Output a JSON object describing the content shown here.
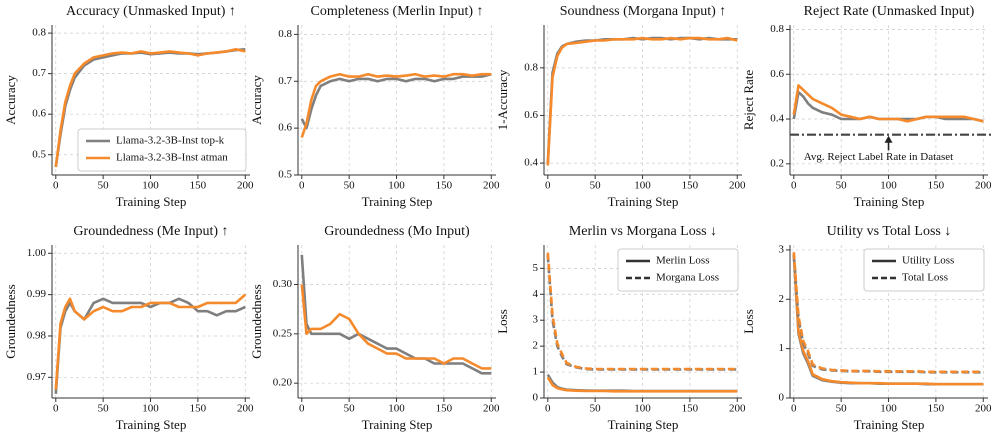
{
  "chart_data": [
    {
      "type": "line",
      "title": "Accuracy (Unmasked Input) ↑",
      "xlabel": "Training Step",
      "ylabel": "Accuracy",
      "x": [
        0,
        5,
        10,
        15,
        20,
        30,
        40,
        50,
        60,
        70,
        80,
        90,
        100,
        110,
        120,
        130,
        140,
        150,
        160,
        170,
        180,
        190,
        200
      ],
      "xlim": [
        -4,
        205
      ],
      "xticks": [
        0,
        50,
        100,
        150,
        200
      ],
      "ylim": [
        0.45,
        0.82
      ],
      "yticks": [
        0.5,
        0.6,
        0.7,
        0.8
      ],
      "grid": true,
      "series": [
        {
          "color": "#7f7f7f",
          "dash": false,
          "values": [
            0.47,
            0.55,
            0.62,
            0.66,
            0.69,
            0.72,
            0.735,
            0.74,
            0.745,
            0.75,
            0.75,
            0.752,
            0.748,
            0.75,
            0.752,
            0.75,
            0.75,
            0.748,
            0.75,
            0.752,
            0.755,
            0.758,
            0.76
          ]
        },
        {
          "color": "#f58a2c",
          "dash": false,
          "values": [
            0.47,
            0.56,
            0.63,
            0.67,
            0.7,
            0.725,
            0.74,
            0.745,
            0.75,
            0.752,
            0.75,
            0.755,
            0.75,
            0.752,
            0.755,
            0.752,
            0.75,
            0.745,
            0.75,
            0.752,
            0.755,
            0.76,
            0.755
          ]
        }
      ],
      "legend": {
        "loc": "lower right",
        "entries": [
          {
            "label": "Llama-3.2-3B-Inst top-k",
            "color": "#7f7f7f",
            "dash": false
          },
          {
            "label": "Llama-3.2-3B-Inst atman",
            "color": "#f58a2c",
            "dash": false
          }
        ]
      }
    },
    {
      "type": "line",
      "title": "Completeness (Merlin Input) ↑",
      "xlabel": "Training Step",
      "ylabel": "Accuracy",
      "x": [
        0,
        5,
        10,
        15,
        20,
        30,
        40,
        50,
        60,
        70,
        80,
        90,
        100,
        110,
        120,
        130,
        140,
        150,
        160,
        170,
        180,
        190,
        200
      ],
      "xlim": [
        -4,
        205
      ],
      "xticks": [
        0,
        50,
        100,
        150,
        200
      ],
      "ylim": [
        0.5,
        0.82
      ],
      "yticks": [
        0.5,
        0.6,
        0.7,
        0.8
      ],
      "grid": true,
      "series": [
        {
          "color": "#7f7f7f",
          "dash": false,
          "values": [
            0.62,
            0.6,
            0.64,
            0.67,
            0.69,
            0.7,
            0.705,
            0.7,
            0.705,
            0.705,
            0.7,
            0.705,
            0.705,
            0.7,
            0.705,
            0.705,
            0.7,
            0.705,
            0.705,
            0.71,
            0.71,
            0.71,
            0.715
          ]
        },
        {
          "color": "#f58a2c",
          "dash": false,
          "values": [
            0.58,
            0.61,
            0.66,
            0.69,
            0.7,
            0.71,
            0.715,
            0.71,
            0.71,
            0.715,
            0.71,
            0.712,
            0.71,
            0.712,
            0.715,
            0.71,
            0.712,
            0.71,
            0.715,
            0.715,
            0.712,
            0.715,
            0.715
          ]
        }
      ]
    },
    {
      "type": "line",
      "title": "Soundness (Morgana Input) ↑",
      "xlabel": "Training Step",
      "ylabel": "1-Accuracy",
      "x": [
        0,
        5,
        10,
        15,
        20,
        30,
        40,
        50,
        60,
        70,
        80,
        90,
        100,
        110,
        120,
        130,
        140,
        150,
        160,
        170,
        180,
        190,
        200
      ],
      "xlim": [
        -4,
        205
      ],
      "xticks": [
        0,
        50,
        100,
        150,
        200
      ],
      "ylim": [
        0.35,
        0.98
      ],
      "yticks": [
        0.4,
        0.6,
        0.8
      ],
      "grid": true,
      "series": [
        {
          "color": "#7f7f7f",
          "dash": false,
          "values": [
            0.4,
            0.78,
            0.86,
            0.89,
            0.9,
            0.91,
            0.915,
            0.915,
            0.92,
            0.92,
            0.92,
            0.925,
            0.92,
            0.925,
            0.925,
            0.92,
            0.925,
            0.925,
            0.92,
            0.925,
            0.92,
            0.92,
            0.92
          ]
        },
        {
          "color": "#f58a2c",
          "dash": false,
          "values": [
            0.39,
            0.76,
            0.85,
            0.885,
            0.9,
            0.905,
            0.91,
            0.915,
            0.915,
            0.92,
            0.92,
            0.92,
            0.925,
            0.92,
            0.92,
            0.925,
            0.92,
            0.925,
            0.925,
            0.92,
            0.92,
            0.925,
            0.915
          ]
        }
      ]
    },
    {
      "type": "line",
      "title": "Reject Rate (Unmasked Input)",
      "xlabel": "Training Step",
      "ylabel": "Reject Rate",
      "x": [
        0,
        5,
        10,
        15,
        20,
        30,
        40,
        50,
        60,
        70,
        80,
        90,
        100,
        110,
        120,
        130,
        140,
        150,
        160,
        170,
        180,
        190,
        200
      ],
      "xlim": [
        -4,
        205
      ],
      "xticks": [
        0,
        50,
        100,
        150,
        200
      ],
      "ylim": [
        0.15,
        0.82
      ],
      "yticks": [
        0.2,
        0.4,
        0.6,
        0.8
      ],
      "grid": true,
      "series": [
        {
          "color": "#7f7f7f",
          "dash": false,
          "values": [
            0.4,
            0.52,
            0.5,
            0.47,
            0.45,
            0.43,
            0.42,
            0.4,
            0.4,
            0.4,
            0.41,
            0.4,
            0.4,
            0.4,
            0.4,
            0.4,
            0.41,
            0.41,
            0.4,
            0.4,
            0.4,
            0.4,
            0.39
          ]
        },
        {
          "color": "#f58a2c",
          "dash": false,
          "values": [
            0.42,
            0.55,
            0.53,
            0.51,
            0.49,
            0.47,
            0.45,
            0.42,
            0.41,
            0.4,
            0.41,
            0.4,
            0.4,
            0.4,
            0.39,
            0.4,
            0.41,
            0.41,
            0.41,
            0.41,
            0.41,
            0.4,
            0.39
          ]
        }
      ],
      "hline": {
        "value": 0.33,
        "color": "#444"
      },
      "annotation": {
        "text": "Avg. Reject Label Rate in Dataset",
        "xy": [
          100,
          0.33
        ],
        "xytext": [
          100,
          0.26
        ]
      }
    },
    {
      "type": "line",
      "title": "Groundedness (Me Input) ↑",
      "xlabel": "Training Step",
      "ylabel": "Groundedness",
      "x": [
        0,
        5,
        10,
        15,
        20,
        30,
        40,
        50,
        60,
        70,
        80,
        90,
        100,
        110,
        120,
        130,
        140,
        150,
        160,
        170,
        180,
        190,
        200
      ],
      "xlim": [
        -4,
        205
      ],
      "xticks": [
        0,
        50,
        100,
        150,
        200
      ],
      "ylim": [
        0.965,
        1.002
      ],
      "yticks": [
        0.97,
        0.98,
        0.99,
        {
          "value": 1,
          "label": "1.00"
        }
      ],
      "grid": true,
      "series": [
        {
          "color": "#7f7f7f",
          "dash": false,
          "values": [
            0.966,
            0.982,
            0.986,
            0.988,
            0.986,
            0.984,
            0.988,
            0.989,
            0.988,
            0.988,
            0.988,
            0.988,
            0.987,
            0.988,
            0.988,
            0.989,
            0.988,
            0.986,
            0.986,
            0.985,
            0.986,
            0.986,
            0.987
          ]
        },
        {
          "color": "#f58a2c",
          "dash": false,
          "values": [
            0.967,
            0.983,
            0.987,
            0.989,
            0.986,
            0.984,
            0.986,
            0.987,
            0.986,
            0.986,
            0.987,
            0.987,
            0.988,
            0.988,
            0.988,
            0.987,
            0.987,
            0.987,
            0.988,
            0.988,
            0.988,
            0.988,
            0.99
          ]
        }
      ]
    },
    {
      "type": "line",
      "title": "Groundedness (Mo Input)",
      "xlabel": "Training Step",
      "ylabel": "Groundedness",
      "x": [
        0,
        5,
        10,
        15,
        20,
        30,
        40,
        50,
        60,
        70,
        80,
        90,
        100,
        110,
        120,
        130,
        140,
        150,
        160,
        170,
        180,
        190,
        200
      ],
      "xlim": [
        -4,
        205
      ],
      "xticks": [
        0,
        50,
        100,
        150,
        200
      ],
      "ylim": [
        0.185,
        0.34
      ],
      "yticks": [
        {
          "value": 0.2,
          "label": "0.20"
        },
        0.25,
        {
          "value": 0.3,
          "label": "0.30"
        }
      ],
      "grid": true,
      "series": [
        {
          "color": "#7f7f7f",
          "dash": false,
          "values": [
            0.33,
            0.26,
            0.25,
            0.25,
            0.25,
            0.25,
            0.25,
            0.245,
            0.25,
            0.245,
            0.24,
            0.235,
            0.235,
            0.23,
            0.225,
            0.225,
            0.22,
            0.22,
            0.22,
            0.22,
            0.215,
            0.21,
            0.21
          ]
        },
        {
          "color": "#f58a2c",
          "dash": false,
          "values": [
            0.3,
            0.25,
            0.255,
            0.255,
            0.255,
            0.26,
            0.27,
            0.265,
            0.25,
            0.24,
            0.235,
            0.23,
            0.23,
            0.225,
            0.225,
            0.225,
            0.225,
            0.22,
            0.225,
            0.225,
            0.22,
            0.215,
            0.215
          ]
        }
      ]
    },
    {
      "type": "line",
      "title": "Merlin vs Morgana Loss ↓",
      "xlabel": "Training Step",
      "ylabel": "Loss",
      "x": [
        0,
        5,
        10,
        15,
        20,
        30,
        40,
        50,
        60,
        70,
        80,
        90,
        100,
        110,
        120,
        130,
        140,
        150,
        160,
        170,
        180,
        190,
        200
      ],
      "xlim": [
        -4,
        205
      ],
      "xticks": [
        0,
        50,
        100,
        150,
        200
      ],
      "ylim": [
        0,
        5.9
      ],
      "yticks": [
        0,
        1,
        2,
        3,
        4,
        5
      ],
      "grid": true,
      "series": [
        {
          "color": "#7f7f7f",
          "dash": false,
          "values": [
            0.9,
            0.6,
            0.42,
            0.36,
            0.32,
            0.3,
            0.29,
            0.28,
            0.28,
            0.28,
            0.28,
            0.27,
            0.27,
            0.27,
            0.27,
            0.27,
            0.27,
            0.27,
            0.27,
            0.27,
            0.27,
            0.27,
            0.27
          ]
        },
        {
          "color": "#f58a2c",
          "dash": false,
          "values": [
            0.8,
            0.5,
            0.38,
            0.33,
            0.3,
            0.28,
            0.27,
            0.27,
            0.27,
            0.26,
            0.26,
            0.26,
            0.26,
            0.26,
            0.26,
            0.26,
            0.26,
            0.26,
            0.26,
            0.26,
            0.26,
            0.26,
            0.26
          ]
        },
        {
          "color": "#7f7f7f",
          "dash": true,
          "values": [
            5.5,
            3.0,
            2.0,
            1.6,
            1.3,
            1.18,
            1.12,
            1.1,
            1.1,
            1.1,
            1.1,
            1.1,
            1.1,
            1.1,
            1.1,
            1.1,
            1.1,
            1.1,
            1.1,
            1.1,
            1.1,
            1.1,
            1.1
          ]
        },
        {
          "color": "#f58a2c",
          "dash": true,
          "values": [
            5.6,
            3.2,
            2.1,
            1.7,
            1.35,
            1.2,
            1.14,
            1.12,
            1.12,
            1.12,
            1.12,
            1.12,
            1.12,
            1.12,
            1.12,
            1.12,
            1.12,
            1.12,
            1.12,
            1.12,
            1.12,
            1.12,
            1.12
          ]
        }
      ],
      "legend": {
        "loc": "upper right",
        "entries": [
          {
            "label": "Merlin Loss",
            "color": "#333",
            "dash": false
          },
          {
            "label": "Morgana Loss",
            "color": "#333",
            "dash": true
          }
        ]
      }
    },
    {
      "type": "line",
      "title": "Utility vs Total Loss ↓",
      "xlabel": "Training Step",
      "ylabel": "Loss",
      "x": [
        0,
        5,
        10,
        15,
        20,
        30,
        40,
        50,
        60,
        70,
        80,
        90,
        100,
        110,
        120,
        130,
        140,
        150,
        160,
        170,
        180,
        190,
        200
      ],
      "xlim": [
        -4,
        205
      ],
      "xticks": [
        0,
        50,
        100,
        150,
        200
      ],
      "ylim": [
        0,
        3.1
      ],
      "yticks": [
        0,
        1,
        2,
        3
      ],
      "grid": true,
      "series": [
        {
          "color": "#7f7f7f",
          "dash": false,
          "values": [
            2.9,
            1.3,
            0.9,
            0.7,
            0.45,
            0.36,
            0.33,
            0.31,
            0.3,
            0.3,
            0.3,
            0.29,
            0.29,
            0.29,
            0.29,
            0.29,
            0.28,
            0.28,
            0.28,
            0.28,
            0.28,
            0.28,
            0.28
          ]
        },
        {
          "color": "#f58a2c",
          "dash": false,
          "values": [
            2.95,
            1.35,
            0.95,
            0.75,
            0.48,
            0.38,
            0.34,
            0.32,
            0.31,
            0.3,
            0.3,
            0.3,
            0.29,
            0.29,
            0.29,
            0.29,
            0.29,
            0.28,
            0.28,
            0.28,
            0.28,
            0.28,
            0.28
          ]
        },
        {
          "color": "#7f7f7f",
          "dash": true,
          "values": [
            2.9,
            1.6,
            1.1,
            0.9,
            0.65,
            0.58,
            0.56,
            0.55,
            0.54,
            0.54,
            0.54,
            0.53,
            0.53,
            0.53,
            0.53,
            0.53,
            0.52,
            0.52,
            0.52,
            0.52,
            0.52,
            0.52,
            0.52
          ]
        },
        {
          "color": "#f58a2c",
          "dash": true,
          "values": [
            2.95,
            1.65,
            1.15,
            0.95,
            0.68,
            0.6,
            0.57,
            0.56,
            0.55,
            0.55,
            0.55,
            0.54,
            0.54,
            0.54,
            0.54,
            0.54,
            0.53,
            0.53,
            0.53,
            0.53,
            0.53,
            0.53,
            0.53
          ]
        }
      ],
      "legend": {
        "loc": "upper right",
        "entries": [
          {
            "label": "Utility Loss",
            "color": "#333",
            "dash": false
          },
          {
            "label": "Total Loss",
            "color": "#333",
            "dash": true
          }
        ]
      }
    }
  ]
}
